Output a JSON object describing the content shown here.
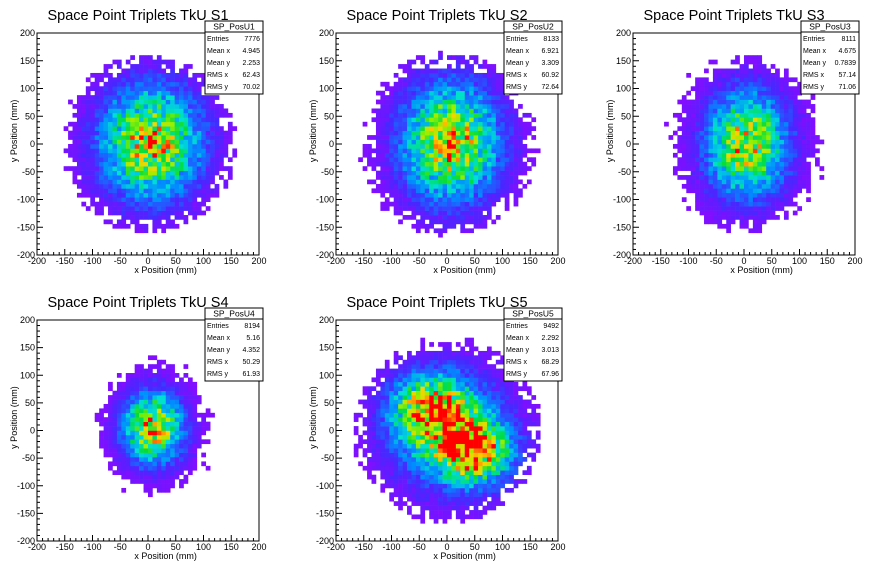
{
  "chart_data": [
    {
      "type": "heatmap",
      "title": "Space Point Triplets TkU S1",
      "xlabel": "x Position (mm)",
      "ylabel": "y Position (mm)",
      "xlim": [
        -200,
        200
      ],
      "ylim": [
        -200,
        200
      ],
      "xticks": [
        "-200",
        "-150",
        "-100",
        "-50",
        "0",
        "50",
        "100",
        "150",
        "200"
      ],
      "yticks": [
        "-200",
        "-150",
        "-100",
        "-50",
        "0",
        "50",
        "100",
        "150",
        "200"
      ],
      "stats": {
        "name": "SP_PosU1",
        "rows": [
          {
            "label": "Entries",
            "value": "7776"
          },
          {
            "label": "Mean x",
            "value": "4.945"
          },
          {
            "label": "Mean y",
            "value": "2.253"
          },
          {
            "label": "RMS x",
            "value": "62.43"
          },
          {
            "label": "RMS y",
            "value": "70.02"
          }
        ]
      },
      "blobs": [
        {
          "x": 5,
          "y": 3,
          "sx": 62,
          "sy": 70,
          "w": 1.0
        }
      ],
      "radius": 160,
      "seed": 11
    },
    {
      "type": "heatmap",
      "title": "Space Point Triplets TkU S2",
      "xlabel": "x Position (mm)",
      "ylabel": "y Position (mm)",
      "xlim": [
        -200,
        200
      ],
      "ylim": [
        -200,
        200
      ],
      "xticks": [
        "-200",
        "-150",
        "-100",
        "-50",
        "0",
        "50",
        "100",
        "150",
        "200"
      ],
      "yticks": [
        "-200",
        "-150",
        "-100",
        "-50",
        "0",
        "50",
        "100",
        "150",
        "200"
      ],
      "stats": {
        "name": "SP_PosU2",
        "rows": [
          {
            "label": "Entries",
            "value": "8133"
          },
          {
            "label": "Mean x",
            "value": "6.921"
          },
          {
            "label": "Mean y",
            "value": "3.309"
          },
          {
            "label": "RMS x",
            "value": "60.92"
          },
          {
            "label": "RMS y",
            "value": "72.64"
          }
        ]
      },
      "blobs": [
        {
          "x": 7,
          "y": 3,
          "sx": 61,
          "sy": 73,
          "w": 1.0
        }
      ],
      "radius": 165,
      "seed": 23
    },
    {
      "type": "heatmap",
      "title": "Space Point Triplets TkU S3",
      "xlabel": "x Position (mm)",
      "ylabel": "y Position (mm)",
      "xlim": [
        -200,
        200
      ],
      "ylim": [
        -200,
        200
      ],
      "xticks": [
        "-200",
        "-150",
        "-100",
        "-50",
        "0",
        "50",
        "100",
        "150",
        "200"
      ],
      "yticks": [
        "-200",
        "-150",
        "-100",
        "-50",
        "0",
        "50",
        "100",
        "150",
        "200"
      ],
      "stats": {
        "name": "SP_PosU3",
        "rows": [
          {
            "label": "Entries",
            "value": "8111"
          },
          {
            "label": "Mean x",
            "value": "4.675"
          },
          {
            "label": "Mean y",
            "value": "0.7839"
          },
          {
            "label": "RMS x",
            "value": "57.14"
          },
          {
            "label": "RMS y",
            "value": "71.06"
          }
        ]
      },
      "blobs": [
        {
          "x": 5,
          "y": 0,
          "sx": 50,
          "sy": 65,
          "w": 1.0
        }
      ],
      "radius": 160,
      "seed": 37
    },
    {
      "type": "heatmap",
      "title": "Space Point Triplets TkU S4",
      "xlabel": "x Position (mm)",
      "ylabel": "y Position (mm)",
      "xlim": [
        -200,
        200
      ],
      "ylim": [
        -200,
        200
      ],
      "xticks": [
        "-200",
        "-150",
        "-100",
        "-50",
        "0",
        "50",
        "100",
        "150",
        "200"
      ],
      "yticks": [
        "-200",
        "-150",
        "-100",
        "-50",
        "0",
        "50",
        "100",
        "150",
        "200"
      ],
      "stats": {
        "name": "SP_PosU4",
        "rows": [
          {
            "label": "Entries",
            "value": "8194"
          },
          {
            "label": "Mean x",
            "value": "5.16"
          },
          {
            "label": "Mean y",
            "value": "4.352"
          },
          {
            "label": "RMS x",
            "value": "50.29"
          },
          {
            "label": "RMS y",
            "value": "61.93"
          }
        ]
      },
      "blobs": [
        {
          "x": 10,
          "y": 5,
          "sx": 38,
          "sy": 45,
          "w": 1.0
        }
      ],
      "radius": 160,
      "seed": 53
    },
    {
      "type": "heatmap",
      "title": "Space Point Triplets TkU S5",
      "xlabel": "x Position (mm)",
      "ylabel": "y Position (mm)",
      "xlim": [
        -200,
        200
      ],
      "ylim": [
        -200,
        200
      ],
      "xticks": [
        "-200",
        "-150",
        "-100",
        "-50",
        "0",
        "50",
        "100",
        "150",
        "200"
      ],
      "yticks": [
        "-200",
        "-150",
        "-100",
        "-50",
        "0",
        "50",
        "100",
        "150",
        "200"
      ],
      "stats": {
        "name": "SP_PosU5",
        "rows": [
          {
            "label": "Entries",
            "value": "9492"
          },
          {
            "label": "Mean x",
            "value": "2.292"
          },
          {
            "label": "Mean y",
            "value": "3.013"
          },
          {
            "label": "RMS x",
            "value": "68.29"
          },
          {
            "label": "RMS y",
            "value": "67.96"
          }
        ]
      },
      "blobs": [
        {
          "x": -30,
          "y": 40,
          "sx": 45,
          "sy": 40,
          "w": 0.8
        },
        {
          "x": 50,
          "y": -35,
          "sx": 45,
          "sy": 40,
          "w": 0.9
        },
        {
          "x": 0,
          "y": 0,
          "sx": 75,
          "sy": 75,
          "w": 0.55
        }
      ],
      "radius": 170,
      "seed": 71
    }
  ]
}
